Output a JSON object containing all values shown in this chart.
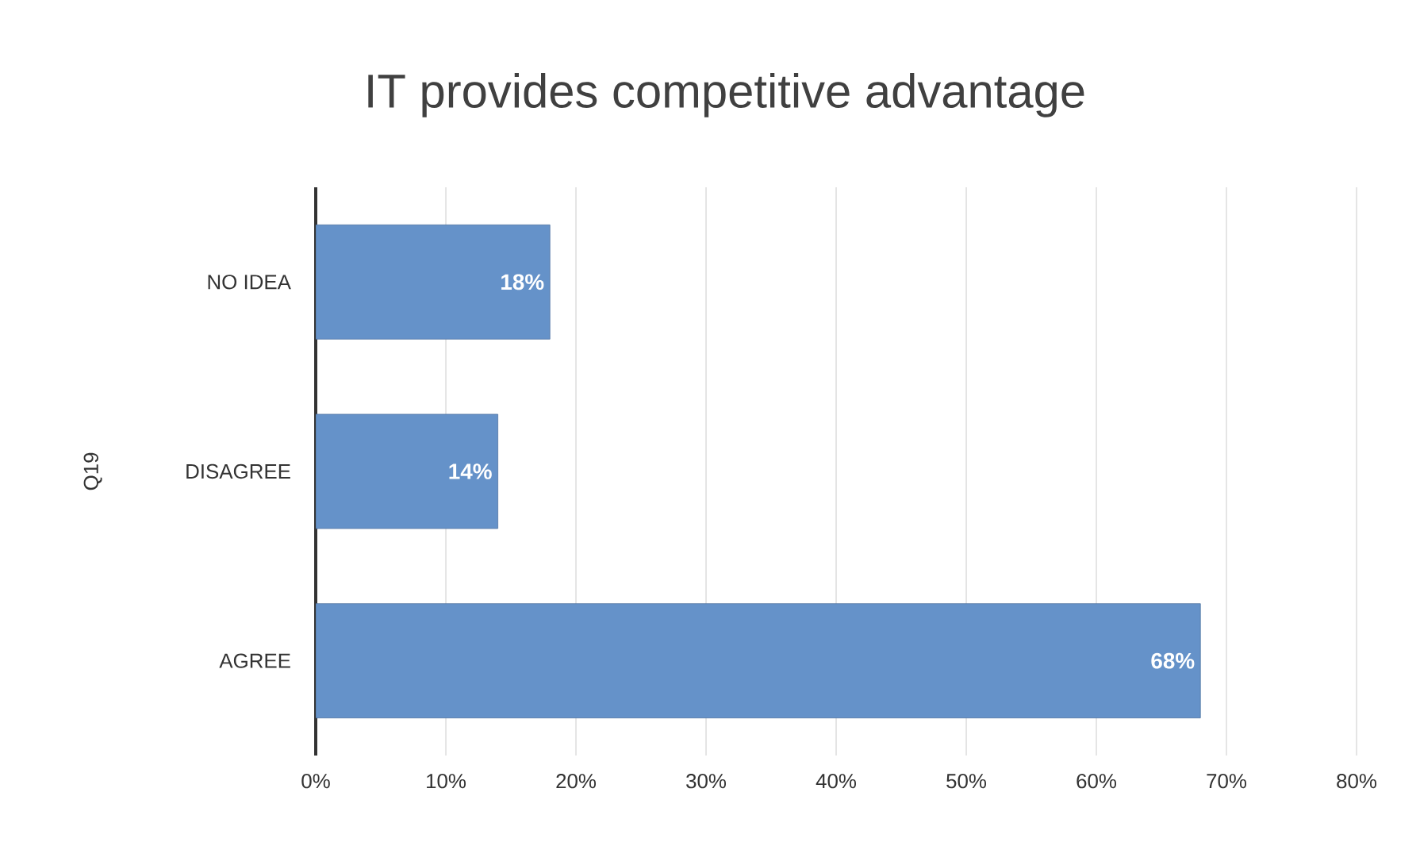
{
  "chart_data": {
    "type": "bar",
    "orientation": "horizontal",
    "title": "IT provides competitive advantage",
    "ylabel": "Q19",
    "categories": [
      "NO IDEA",
      "DISAGREE",
      "AGREE"
    ],
    "values": [
      18,
      14,
      68
    ],
    "color": "#6592c9",
    "value_labels": [
      "18%",
      "14%",
      "68%"
    ],
    "xlim": [
      0,
      80
    ],
    "xticks": [
      {
        "value": 0,
        "label": "0%"
      },
      {
        "value": 10,
        "label": "10%"
      },
      {
        "value": 20,
        "label": "20%"
      },
      {
        "value": 30,
        "label": "30%"
      },
      {
        "value": 40,
        "label": "40%"
      },
      {
        "value": 50,
        "label": "50%"
      },
      {
        "value": 60,
        "label": "60%"
      },
      {
        "value": 70,
        "label": "70%"
      },
      {
        "value": 80,
        "label": "80%"
      }
    ],
    "grid": "x"
  }
}
